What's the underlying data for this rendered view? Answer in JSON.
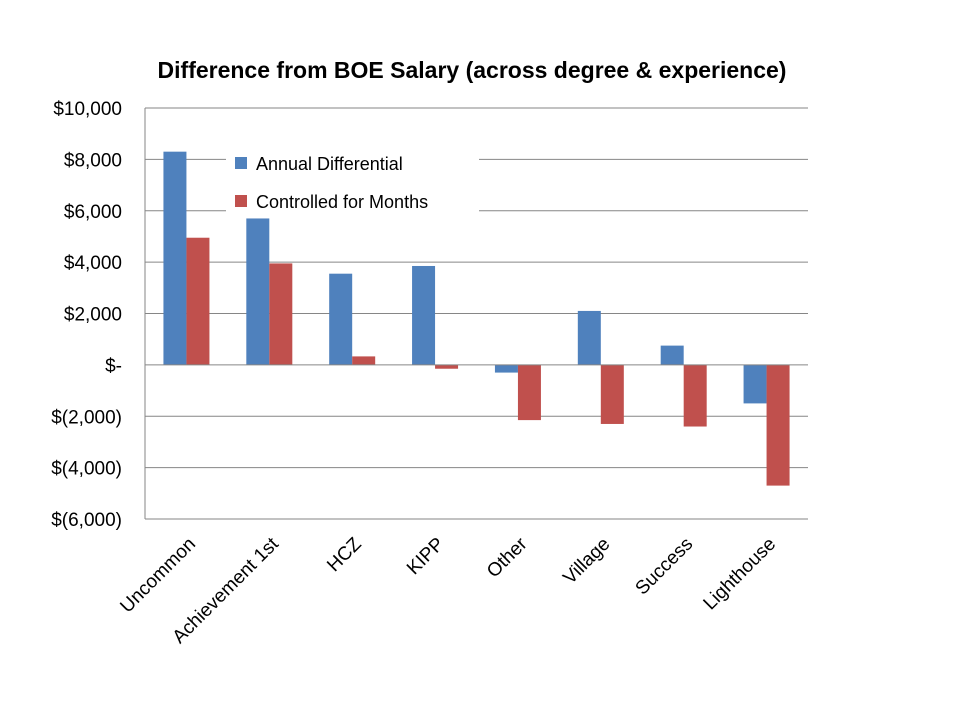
{
  "chart_data": {
    "type": "bar",
    "title": "Difference from BOE Salary (across degree & experience)",
    "categories": [
      "Uncommon",
      "Achievement 1st",
      "HCZ",
      "KIPP",
      "Other",
      "Village",
      "Success",
      "Lighthouse"
    ],
    "series": [
      {
        "name": "Annual Differential",
        "color": "#4F81BD",
        "values": [
          8300,
          5700,
          3550,
          3850,
          -300,
          2100,
          750,
          -1500
        ]
      },
      {
        "name": "Controlled for Months",
        "color": "#C0504D",
        "values": [
          4950,
          3950,
          330,
          -150,
          -2150,
          -2300,
          -2400,
          -4700
        ]
      }
    ],
    "ylim": [
      -6000,
      10000
    ],
    "yticks": [
      10000,
      8000,
      6000,
      4000,
      2000,
      0,
      -2000,
      -4000,
      -6000
    ],
    "ytick_labels": [
      "$10,000",
      "$8,000",
      "$6,000",
      "$4,000",
      "$2,000",
      "$-",
      "$(2,000)",
      "$(4,000)",
      "$(6,000)"
    ],
    "grid": true,
    "legend_position": "top-left inside",
    "xlabel": "",
    "ylabel": ""
  }
}
